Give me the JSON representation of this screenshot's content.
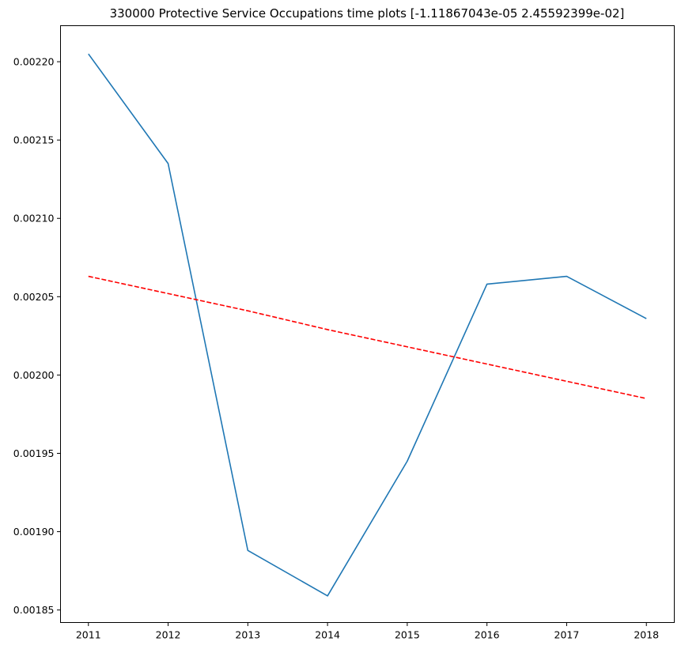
{
  "chart_data": {
    "type": "line",
    "title": "330000 Protective Service Occupations time plots [-1.11867043e-05  2.45592399e-02]",
    "xlabel": "",
    "ylabel": "",
    "x": [
      2011,
      2012,
      2013,
      2014,
      2015,
      2016,
      2017,
      2018
    ],
    "x_tick_labels": [
      "2011",
      "2012",
      "2013",
      "2014",
      "2015",
      "2016",
      "2017",
      "2018"
    ],
    "xlim": [
      2010.65,
      2018.35
    ],
    "ylim": [
      0.001842,
      0.002223
    ],
    "y_ticks": [
      0.00185,
      0.0019,
      0.00195,
      0.002,
      0.00205,
      0.0021,
      0.00215,
      0.0022
    ],
    "y_tick_labels": [
      "0.00185",
      "0.00190",
      "0.00195",
      "0.00200",
      "0.00205",
      "0.00210",
      "0.00215",
      "0.00220"
    ],
    "grid": false,
    "series": [
      {
        "values": [
          0.002205,
          0.002135,
          0.001888,
          0.001859,
          0.001945,
          0.002058,
          0.002063,
          0.002036
        ],
        "color": "#1f77b4",
        "style": "solid"
      },
      {
        "values": [
          0.002063,
          0.002052,
          0.002041,
          0.002029,
          0.002018,
          0.002007,
          0.001996,
          0.001985
        ],
        "color": "#ff0000",
        "style": "dashed"
      }
    ]
  }
}
